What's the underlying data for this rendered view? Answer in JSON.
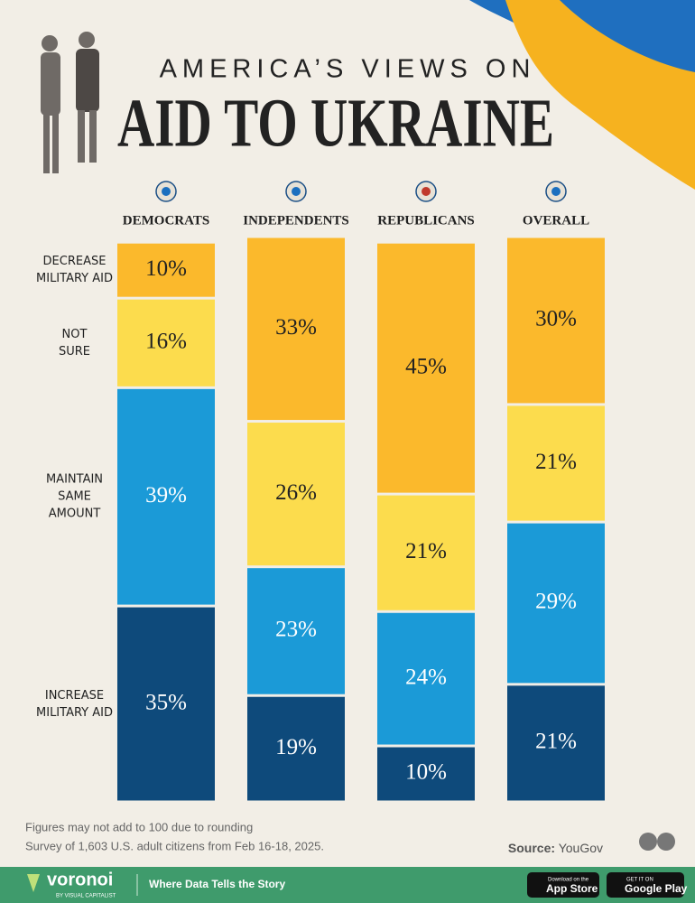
{
  "chart_data": {
    "type": "bar",
    "stacked": true,
    "title_top": "AMERICA’S VIEWS ON",
    "title": "AID TO UKRAINE",
    "categories": [
      "DEMOCRATS",
      "INDEPENDENTS",
      "REPUBLICANS",
      "OVERALL"
    ],
    "series": [
      {
        "name": "INCREASE MILITARY AID",
        "color": "#0e4a7b",
        "values": [
          35,
          19,
          10,
          21
        ],
        "value_labels": [
          "35%",
          "19%",
          "10%",
          "21%"
        ]
      },
      {
        "name": "MAINTAIN SAME AMOUNT",
        "color": "#1b9ad7",
        "values": [
          39,
          23,
          24,
          29
        ],
        "value_labels": [
          "39%",
          "23%",
          "24%",
          "29%"
        ]
      },
      {
        "name": "NOT SURE",
        "color": "#fcdc4d",
        "values": [
          16,
          26,
          21,
          21
        ],
        "value_labels": [
          "16%",
          "26%",
          "21%",
          "21%"
        ]
      },
      {
        "name": "DECREASE MILITARY AID",
        "color": "#fbb92c",
        "values": [
          10,
          33,
          45,
          30
        ],
        "value_labels": [
          "10%",
          "33%",
          "45%",
          "30%"
        ]
      }
    ],
    "ylim": [
      0,
      101
    ],
    "notes": [
      "Figures may not add to 100 due to rounding",
      "Survey of 1,603 U.S. adult citizens from Feb 16-18, 2025."
    ],
    "source_label": "Source:",
    "source": "YouGov"
  },
  "footer": {
    "brand": "voronoi",
    "brand_sub": "BY VISUAL CAPITALIST",
    "tagline": "Where Data Tells the Story",
    "app_store_top": "Download on the",
    "app_store": "App Store",
    "google_top": "GET IT ON",
    "google": "Google Play"
  }
}
